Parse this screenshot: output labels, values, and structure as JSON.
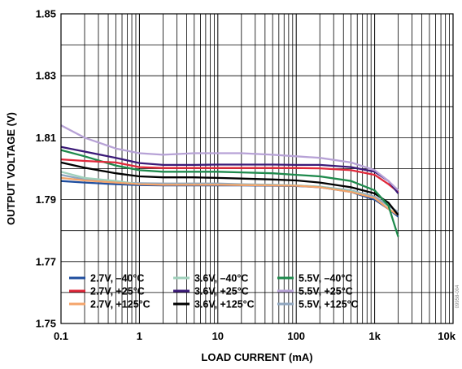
{
  "chart_data": {
    "type": "line",
    "xlabel": "LOAD CURRENT (mA)",
    "ylabel": "OUTPUT VOLTAGE (V)",
    "x_scale": "log",
    "xlim": [
      0.1,
      10000
    ],
    "ylim": [
      1.75,
      1.85
    ],
    "x_ticks": [
      "0.1",
      "1",
      "10",
      "100",
      "1k",
      "10k"
    ],
    "y_ticks": [
      "1.75",
      "1.77",
      "1.79",
      "1.81",
      "1.83",
      "1.85"
    ],
    "grid": true,
    "legend_position": "bottom-left, inside plot",
    "figure_id": "09958-004",
    "x": [
      0.1,
      0.2,
      0.5,
      1,
      2,
      5,
      10,
      20,
      50,
      100,
      200,
      500,
      1000,
      1500,
      2000
    ],
    "series": [
      {
        "name": "2.7V, –40°C",
        "color": "#1f4e9e",
        "values": [
          1.796,
          1.7955,
          1.795,
          1.7947,
          1.7946,
          1.7946,
          1.7946,
          1.7946,
          1.7945,
          1.7944,
          1.794,
          1.7925,
          1.79,
          1.787,
          1.7845
        ]
      },
      {
        "name": "2.7V, +25°C",
        "color": "#e0283a",
        "values": [
          1.803,
          1.8025,
          1.802,
          1.8005,
          1.8002,
          1.8002,
          1.8002,
          1.8002,
          1.8002,
          1.8002,
          1.8001,
          1.7995,
          1.798,
          1.795,
          1.7925
        ]
      },
      {
        "name": "2.7V, +125°C",
        "color": "#f4a46a",
        "values": [
          1.797,
          1.7962,
          1.7955,
          1.795,
          1.7948,
          1.7948,
          1.7948,
          1.7947,
          1.7946,
          1.7945,
          1.794,
          1.7925,
          1.7905,
          1.787,
          1.785
        ]
      },
      {
        "name": "3.6V, –40°C",
        "color": "#9fd0bb",
        "values": [
          1.799,
          1.797,
          1.796,
          1.795,
          1.7948,
          1.7948,
          1.7948,
          1.7948,
          1.7947,
          1.7946,
          1.7942,
          1.7928,
          1.7905,
          1.787,
          1.785
        ]
      },
      {
        "name": "3.6V, +25°C",
        "color": "#3b1a78",
        "values": [
          1.807,
          1.8055,
          1.8035,
          1.8018,
          1.8012,
          1.8012,
          1.8013,
          1.8013,
          1.8013,
          1.8012,
          1.8012,
          1.8005,
          1.799,
          1.796,
          1.792
        ]
      },
      {
        "name": "3.6V, +125°C",
        "color": "#000000",
        "values": [
          1.802,
          1.8003,
          1.7985,
          1.7975,
          1.7972,
          1.7972,
          1.797,
          1.7968,
          1.7965,
          1.7962,
          1.7955,
          1.794,
          1.792,
          1.789,
          1.785
        ]
      },
      {
        "name": "5.5V, –40°C",
        "color": "#1e8a4c",
        "values": [
          1.806,
          1.804,
          1.801,
          1.7995,
          1.799,
          1.799,
          1.799,
          1.7988,
          1.7985,
          1.798,
          1.7975,
          1.796,
          1.793,
          1.788,
          1.778
        ]
      },
      {
        "name": "5.5V, +25°C",
        "color": "#b7a2d6",
        "values": [
          1.814,
          1.81,
          1.8065,
          1.805,
          1.8045,
          1.805,
          1.805,
          1.805,
          1.8045,
          1.804,
          1.8035,
          1.802,
          1.7995,
          1.796,
          1.793
        ]
      },
      {
        "name": "5.5V, +125°C",
        "color": "#8fa6bf",
        "values": [
          1.798,
          1.7965,
          1.7955,
          1.7953,
          1.7952,
          1.7952,
          1.7952,
          1.795,
          1.7948,
          1.7946,
          1.7942,
          1.793,
          1.791,
          1.788,
          1.786
        ]
      }
    ]
  }
}
